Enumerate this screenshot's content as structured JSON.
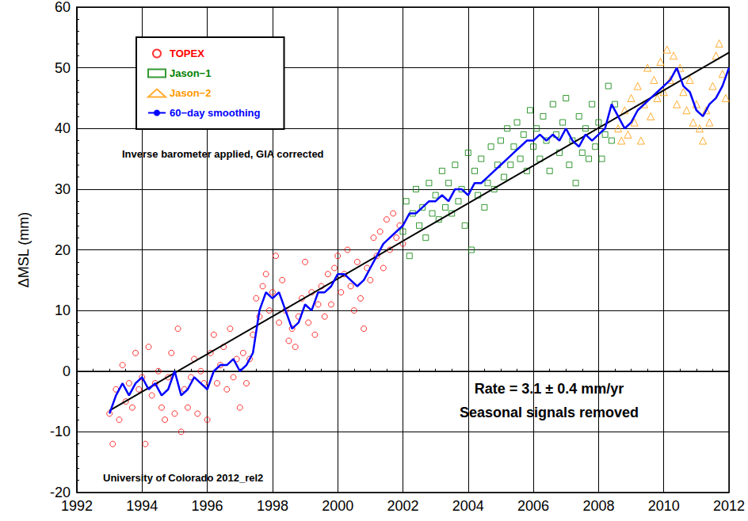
{
  "chart_data": {
    "type": "scatter",
    "y_label": "ΔMSL (mm)",
    "annotations": [
      "Inverse barometer applied, GIA corrected",
      "Rate = 3.1 ± 0.4 mm/yr",
      "Seasonal signals removed",
      "University of Colorado 2012_rel2"
    ],
    "xlim": [
      1992,
      2012
    ],
    "xticks": [
      1992,
      1994,
      1996,
      1998,
      2000,
      2002,
      2004,
      2006,
      2008,
      2010,
      2012
    ],
    "ylim": [
      -20,
      60
    ],
    "yticks": [
      -20,
      -10,
      0,
      10,
      20,
      30,
      40,
      50,
      60
    ],
    "grid": true,
    "legend": "top-left",
    "series": [
      {
        "name": "TOPEX",
        "type": "scatter",
        "marker": "circle",
        "color": "#ff0000",
        "x": [
          1993.0,
          1993.1,
          1993.2,
          1993.3,
          1993.4,
          1993.5,
          1993.6,
          1993.7,
          1993.8,
          1993.9,
          1994.0,
          1994.1,
          1994.2,
          1994.3,
          1994.4,
          1994.5,
          1994.6,
          1994.7,
          1994.8,
          1994.9,
          1995.0,
          1995.1,
          1995.2,
          1995.3,
          1995.4,
          1995.5,
          1995.6,
          1995.7,
          1995.8,
          1995.9,
          1996.0,
          1996.1,
          1996.2,
          1996.3,
          1996.4,
          1996.5,
          1996.6,
          1996.7,
          1996.8,
          1996.9,
          1997.0,
          1997.1,
          1997.2,
          1997.3,
          1997.4,
          1997.5,
          1997.6,
          1997.7,
          1997.8,
          1997.9,
          1998.0,
          1998.1,
          1998.2,
          1998.3,
          1998.4,
          1998.5,
          1998.6,
          1998.7,
          1998.8,
          1998.9,
          1999.0,
          1999.1,
          1999.2,
          1999.3,
          1999.4,
          1999.5,
          1999.6,
          1999.7,
          1999.8,
          1999.9,
          2000.0,
          2000.1,
          2000.2,
          2000.3,
          2000.4,
          2000.5,
          2000.6,
          2000.7,
          2000.8,
          2000.9,
          2001.0,
          2001.1,
          2001.2,
          2001.3,
          2001.4,
          2001.5,
          2001.6,
          2001.7,
          2001.8,
          2001.9,
          2002.0
        ],
        "values": [
          -7,
          -12,
          -3,
          -8,
          1,
          -5,
          -2,
          -6,
          3,
          -3,
          -1,
          -12,
          4,
          -4,
          -2,
          0,
          -6,
          -8,
          -1,
          3,
          -7,
          7,
          -10,
          -3,
          -6,
          -1,
          2,
          -7,
          0,
          -2,
          -8,
          3,
          6,
          -2,
          1,
          4,
          -3,
          7,
          -1,
          2,
          -6,
          3,
          -2,
          2,
          6,
          12,
          9,
          14,
          16,
          10,
          13,
          19,
          8,
          15,
          10,
          5,
          7,
          4,
          9,
          12,
          18,
          8,
          13,
          6,
          11,
          14,
          9,
          16,
          11,
          17,
          19,
          13,
          16,
          20,
          14,
          10,
          18,
          12,
          7,
          17,
          15,
          22,
          19,
          23,
          17,
          25,
          20,
          26,
          22,
          24,
          21
        ]
      },
      {
        "name": "Jason−1",
        "type": "scatter",
        "marker": "square",
        "color": "#008000",
        "x": [
          2002.0,
          2002.1,
          2002.2,
          2002.3,
          2002.4,
          2002.5,
          2002.6,
          2002.7,
          2002.8,
          2002.9,
          2003.0,
          2003.1,
          2003.2,
          2003.3,
          2003.4,
          2003.5,
          2003.6,
          2003.7,
          2003.8,
          2003.9,
          2004.0,
          2004.1,
          2004.2,
          2004.3,
          2004.4,
          2004.5,
          2004.6,
          2004.7,
          2004.8,
          2004.9,
          2005.0,
          2005.1,
          2005.2,
          2005.3,
          2005.4,
          2005.5,
          2005.6,
          2005.7,
          2005.8,
          2005.9,
          2006.0,
          2006.1,
          2006.2,
          2006.3,
          2006.4,
          2006.5,
          2006.6,
          2006.7,
          2006.8,
          2006.9,
          2007.0,
          2007.1,
          2007.2,
          2007.3,
          2007.4,
          2007.5,
          2007.6,
          2007.7,
          2007.8,
          2007.9,
          2008.0,
          2008.1,
          2008.2,
          2008.3,
          2008.4,
          2008.5
        ],
        "values": [
          23,
          28,
          19,
          26,
          30,
          24,
          27,
          22,
          31,
          26,
          29,
          25,
          33,
          27,
          31,
          26,
          34,
          28,
          30,
          24,
          36,
          20,
          33,
          29,
          35,
          27,
          31,
          37,
          30,
          34,
          38,
          32,
          40,
          34,
          37,
          41,
          35,
          39,
          33,
          43,
          37,
          40,
          35,
          42,
          38,
          33,
          44,
          39,
          36,
          41,
          45,
          34,
          38,
          31,
          42,
          36,
          40,
          35,
          44,
          37,
          41,
          35,
          39,
          47,
          38,
          44
        ]
      },
      {
        "name": "Jason−2",
        "type": "scatter",
        "marker": "triangle",
        "color": "#ff9900",
        "x": [
          2008.6,
          2008.7,
          2008.8,
          2008.9,
          2009.0,
          2009.1,
          2009.2,
          2009.3,
          2009.4,
          2009.5,
          2009.6,
          2009.7,
          2009.8,
          2009.9,
          2010.0,
          2010.1,
          2010.2,
          2010.3,
          2010.4,
          2010.5,
          2010.6,
          2010.7,
          2010.8,
          2010.9,
          2011.0,
          2011.1,
          2011.2,
          2011.3,
          2011.4,
          2011.5,
          2011.6,
          2011.7,
          2011.8,
          2011.9
        ],
        "values": [
          40,
          38,
          43,
          39,
          45,
          41,
          47,
          38,
          44,
          50,
          42,
          48,
          45,
          51,
          46,
          53,
          48,
          52,
          44,
          50,
          46,
          43,
          48,
          41,
          44,
          40,
          38,
          43,
          41,
          47,
          52,
          54,
          49,
          45
        ]
      },
      {
        "type": "line",
        "line_style": "solid",
        "color": "#000000",
        "x": [
          1993.0,
          2012.0
        ],
        "values": [
          -6.5,
          52.5
        ]
      },
      {
        "name": "60−day smoothing",
        "type": "line",
        "line_style": "solid",
        "color": "#0000ff",
        "x": [
          1993.0,
          1993.2,
          1993.4,
          1993.6,
          1993.8,
          1994.0,
          1994.2,
          1994.4,
          1994.6,
          1994.8,
          1995.0,
          1995.2,
          1995.4,
          1995.6,
          1995.8,
          1996.0,
          1996.2,
          1996.4,
          1996.6,
          1996.8,
          1997.0,
          1997.2,
          1997.4,
          1997.6,
          1997.8,
          1998.0,
          1998.2,
          1998.4,
          1998.6,
          1998.8,
          1999.0,
          1999.2,
          1999.4,
          1999.6,
          1999.8,
          2000.0,
          2000.2,
          2000.4,
          2000.6,
          2000.8,
          2001.0,
          2001.2,
          2001.4,
          2001.6,
          2001.8,
          2002.0,
          2002.2,
          2002.4,
          2002.6,
          2002.8,
          2003.0,
          2003.2,
          2003.4,
          2003.6,
          2003.8,
          2004.0,
          2004.2,
          2004.4,
          2004.6,
          2004.8,
          2005.0,
          2005.2,
          2005.4,
          2005.6,
          2005.8,
          2006.0,
          2006.2,
          2006.4,
          2006.6,
          2006.8,
          2007.0,
          2007.2,
          2007.4,
          2007.6,
          2007.8,
          2008.0,
          2008.2,
          2008.4,
          2008.6,
          2008.8,
          2009.0,
          2009.2,
          2009.4,
          2009.6,
          2009.8,
          2010.0,
          2010.2,
          2010.4,
          2010.6,
          2010.8,
          2011.0,
          2011.2,
          2011.4,
          2011.6,
          2011.8,
          2012.0
        ],
        "values": [
          -7,
          -4,
          -2,
          -4,
          -2,
          -1,
          -3,
          -2,
          -4,
          -3,
          0,
          -4,
          -3,
          -1,
          -2,
          -3,
          0,
          1,
          1,
          2,
          0,
          1,
          3,
          10,
          13,
          12,
          13,
          10,
          7,
          8,
          11,
          10,
          13,
          13,
          14,
          16,
          16,
          15,
          14,
          15,
          17,
          19,
          21,
          22,
          23,
          24,
          26,
          26,
          27,
          28,
          28,
          29,
          28,
          30,
          30,
          29,
          31,
          31,
          32,
          33,
          34,
          35,
          36,
          37,
          38,
          38,
          39,
          38,
          39,
          38,
          40,
          38,
          37,
          39,
          38,
          39,
          40,
          44,
          42,
          40,
          41,
          43,
          44,
          45,
          46,
          47,
          48,
          50,
          47,
          46,
          43,
          42,
          44,
          45,
          47,
          50
        ]
      }
    ]
  }
}
